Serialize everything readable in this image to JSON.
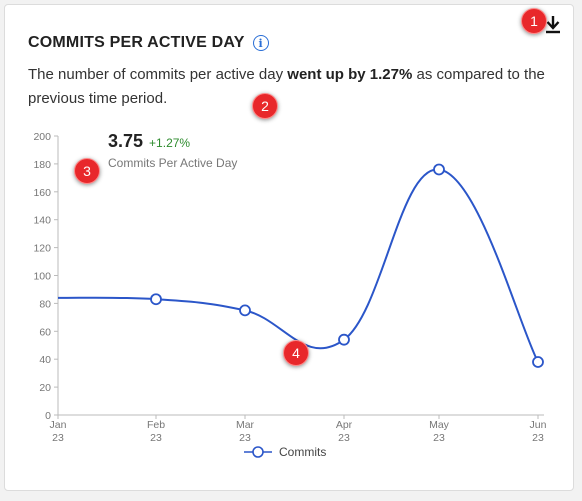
{
  "card": {
    "title": "COMMITS PER ACTIVE DAY",
    "info_icon": "info-icon",
    "download_icon": "download-icon",
    "description": {
      "prefix": "The number of commits per active day ",
      "highlight": "went up by 1.27%",
      "suffix": " as compared to the previous time period."
    }
  },
  "kpi": {
    "value": "3.75",
    "delta": "+1.27%",
    "label": "Commits Per Active Day"
  },
  "badges": [
    "1",
    "2",
    "3",
    "4"
  ],
  "colors": {
    "series": "#2b56c9",
    "delta": "#2e8b2e",
    "badge": "#e8282b",
    "info": "#2b6fd6"
  },
  "chart_data": {
    "type": "line",
    "x": [
      "Jan 23",
      "Feb 23",
      "Mar 23",
      "Apr 23",
      "May 23",
      "Jun 23"
    ],
    "x_ticks": [
      {
        "month": "Jan",
        "year": "23"
      },
      {
        "month": "Feb",
        "year": "23"
      },
      {
        "month": "Mar",
        "year": "23"
      },
      {
        "month": "Apr",
        "year": "23"
      },
      {
        "month": "May",
        "year": "23"
      },
      {
        "month": "Jun",
        "year": "23"
      }
    ],
    "series": [
      {
        "name": "Commits",
        "values": [
          84,
          83,
          75,
          54,
          176,
          38
        ],
        "markers": [
          false,
          true,
          true,
          true,
          true,
          true
        ]
      }
    ],
    "ylim": [
      0,
      200
    ],
    "y_ticks": [
      0,
      20,
      40,
      60,
      80,
      100,
      120,
      140,
      160,
      180,
      200
    ],
    "grid": false,
    "legend": "bottom-center",
    "smooth": true
  }
}
